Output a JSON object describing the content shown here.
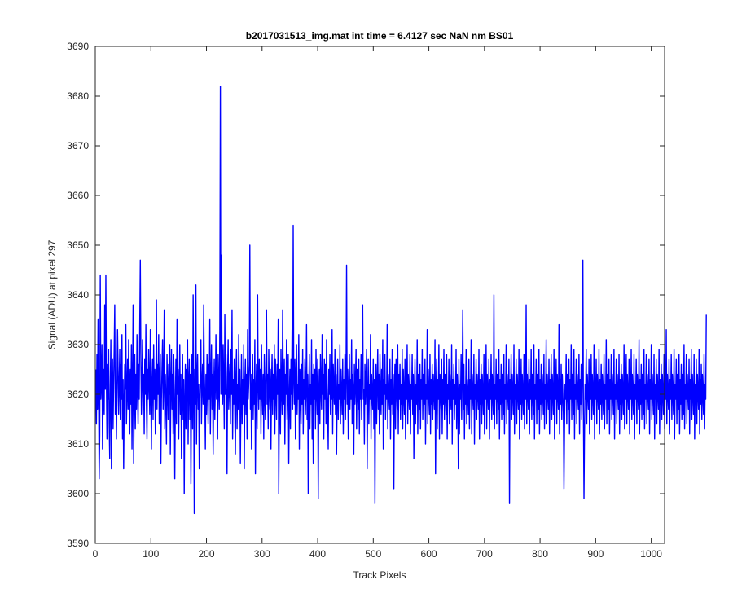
{
  "chart_data": {
    "type": "line",
    "title": "b2017031513_img.mat int time = 6.4127 sec  NaN nm BS01",
    "xlabel": "Track Pixels",
    "ylabel": "Signal (ADU) at pixel 297",
    "xlim": [
      0,
      1024
    ],
    "ylim": [
      3590,
      3690
    ],
    "xticks": [
      0,
      100,
      200,
      300,
      400,
      500,
      600,
      700,
      800,
      900,
      1000
    ],
    "yticks": [
      3590,
      3600,
      3610,
      3620,
      3630,
      3640,
      3650,
      3660,
      3670,
      3680,
      3690
    ],
    "grid": false,
    "series": [
      {
        "color": "#0000ff",
        "x_start": 1,
        "x_step": 1,
        "approx_mean": 3622,
        "approx_std": 7.5,
        "values": [
          3625,
          3614,
          3628,
          3617,
          3635,
          3620,
          3603,
          3612,
          3644,
          3619,
          3622,
          3630,
          3609,
          3618,
          3625,
          3616,
          3638,
          3621,
          3644,
          3623,
          3611,
          3626,
          3619,
          3629,
          3614,
          3607,
          3622,
          3631,
          3605,
          3618,
          3627,
          3613,
          3622,
          3629,
          3638,
          3616,
          3624,
          3611,
          3620,
          3633,
          3625,
          3616,
          3622,
          3629,
          3615,
          3626,
          3619,
          3632,
          3611,
          3623,
          3605,
          3618,
          3626,
          3621,
          3634,
          3614,
          3620,
          3627,
          3617,
          3631,
          3623,
          3612,
          3625,
          3618,
          3630,
          3609,
          3622,
          3638,
          3606,
          3619,
          3628,
          3613,
          3624,
          3617,
          3632,
          3621,
          3614,
          3626,
          3619,
          3634,
          3647,
          3628,
          3616,
          3623,
          3631,
          3617,
          3624,
          3612,
          3627,
          3620,
          3634,
          3618,
          3611,
          3625,
          3619,
          3629,
          3622,
          3616,
          3633,
          3620,
          3609,
          3623,
          3627,
          3615,
          3630,
          3619,
          3625,
          3612,
          3622,
          3639,
          3617,
          3626,
          3620,
          3632,
          3614,
          3623,
          3628,
          3606,
          3619,
          3625,
          3631,
          3617,
          3622,
          3637,
          3613,
          3624,
          3619,
          3610,
          3628,
          3621,
          3615,
          3626,
          3620,
          3630,
          3608,
          3622,
          3629,
          3617,
          3624,
          3612,
          3628,
          3621,
          3603,
          3618,
          3627,
          3614,
          3635,
          3620,
          3625,
          3611,
          3622,
          3630,
          3616,
          3624,
          3607,
          3619,
          3628,
          3615,
          3623,
          3600,
          3618,
          3626,
          3613,
          3625,
          3619,
          3631,
          3610,
          3622,
          3627,
          3615,
          3624,
          3602,
          3619,
          3628,
          3613,
          3640,
          3621,
          3596,
          3625,
          3618,
          3642,
          3610,
          3623,
          3628,
          3617,
          3622,
          3605,
          3619,
          3624,
          3631,
          3614,
          3622,
          3626,
          3618,
          3638,
          3625,
          3620,
          3609,
          3624,
          3616,
          3628,
          3621,
          3614,
          3626,
          3619,
          3635,
          3612,
          3623,
          3630,
          3617,
          3624,
          3608,
          3621,
          3627,
          3615,
          3622,
          3632,
          3619,
          3625,
          3611,
          3628,
          3622,
          3617,
          3634,
          3682,
          3620,
          3648,
          3625,
          3618,
          3630,
          3622,
          3613,
          3636,
          3620,
          3628,
          3619,
          3604,
          3624,
          3631,
          3617,
          3622,
          3626,
          3614,
          3629,
          3620,
          3637,
          3611,
          3623,
          3618,
          3627,
          3616,
          3608,
          3624,
          3629,
          3613,
          3622,
          3617,
          3632,
          3620,
          3625,
          3606,
          3619,
          3628,
          3614,
          3623,
          3618,
          3630,
          3605,
          3621,
          3627,
          3616,
          3624,
          3611,
          3633,
          3619,
          3622,
          3626,
          3650,
          3617,
          3624,
          3609,
          3621,
          3628,
          3615,
          3623,
          3618,
          3631,
          3604,
          3620,
          3626,
          3613,
          3640,
          3622,
          3617,
          3627,
          3619,
          3625,
          3612,
          3630,
          3621,
          3616,
          3624,
          3611,
          3628,
          3620,
          3615,
          3626,
          3637,
          3618,
          3624,
          3613,
          3629,
          3621,
          3617,
          3625,
          3609,
          3622,
          3628,
          3616,
          3624,
          3619,
          3630,
          3612,
          3627,
          3621,
          3615,
          3626,
          3620,
          3635,
          3600,
          3618,
          3625,
          3612,
          3629,
          3621,
          3616,
          3637,
          3623,
          3618,
          3627,
          3610,
          3624,
          3620,
          3631,
          3615,
          3622,
          3628,
          3606,
          3619,
          3625,
          3613,
          3627,
          3620,
          3633,
          3617,
          3654,
          3623,
          3618,
          3627,
          3611,
          3624,
          3630,
          3616,
          3622,
          3619,
          3632,
          3609,
          3625,
          3620,
          3614,
          3626,
          3618,
          3629,
          3612,
          3623,
          3619,
          3627,
          3616,
          3621,
          3634,
          3615,
          3624,
          3600,
          3620,
          3628,
          3613,
          3622,
          3618,
          3631,
          3611,
          3624,
          3606,
          3626,
          3619,
          3625,
          3613,
          3629,
          3621,
          3616,
          3627,
          3599,
          3620,
          3625,
          3614,
          3628,
          3621,
          3617,
          3632,
          3620,
          3624,
          3611,
          3627,
          3619,
          3626,
          3614,
          3631,
          3622,
          3617,
          3609,
          3625,
          3620,
          3628,
          3616,
          3623,
          3619,
          3633,
          3612,
          3626,
          3621,
          3618,
          3629,
          3616,
          3624,
          3608,
          3620,
          3627,
          3615,
          3622,
          3619,
          3630,
          3614,
          3625,
          3620,
          3616,
          3627,
          3612,
          3623,
          3619,
          3628,
          3615,
          3624,
          3646,
          3618,
          3625,
          3611,
          3621,
          3628,
          3617,
          3623,
          3619,
          3631,
          3614,
          3624,
          3621,
          3608,
          3626,
          3618,
          3622,
          3629,
          3613,
          3625,
          3620,
          3617,
          3627,
          3612,
          3623,
          3619,
          3628,
          3615,
          3624,
          3638,
          3619,
          3621,
          3610,
          3626,
          3618,
          3623,
          3629,
          3605,
          3620,
          3627,
          3614,
          3622,
          3619,
          3632,
          3611,
          3624,
          3620,
          3617,
          3627,
          3613,
          3623,
          3598,
          3619,
          3626,
          3614,
          3622,
          3629,
          3617,
          3624,
          3612,
          3628,
          3620,
          3616,
          3625,
          3618,
          3631,
          3609,
          3623,
          3620,
          3628,
          3615,
          3622,
          3619,
          3634,
          3613,
          3624,
          3620,
          3617,
          3627,
          3611,
          3623,
          3618,
          3629,
          3616,
          3624,
          3601,
          3620,
          3626,
          3613,
          3627,
          3621,
          3617,
          3630,
          3612,
          3624,
          3619,
          3626,
          3615,
          3622,
          3618,
          3629,
          3613,
          3625,
          3620,
          3616,
          3627,
          3611,
          3623,
          3619,
          3630,
          3614,
          3624,
          3620,
          3617,
          3628,
          3612,
          3622,
          3619,
          3628,
          3616,
          3624,
          3607,
          3620,
          3627,
          3614,
          3622,
          3618,
          3631,
          3612,
          3624,
          3621,
          3617,
          3626,
          3613,
          3623,
          3619,
          3629,
          3615,
          3624,
          3620,
          3618,
          3627,
          3610,
          3622,
          3619,
          3633,
          3614,
          3625,
          3620,
          3616,
          3628,
          3612,
          3623,
          3618,
          3626,
          3615,
          3624,
          3620,
          3617,
          3631,
          3604,
          3621,
          3627,
          3613,
          3623,
          3619,
          3630,
          3611,
          3624,
          3620,
          3617,
          3627,
          3612,
          3623,
          3618,
          3629,
          3615,
          3624,
          3620,
          3616,
          3628,
          3611,
          3622,
          3619,
          3627,
          3614,
          3624,
          3620,
          3617,
          3630,
          3610,
          3623,
          3619,
          3626,
          3615,
          3622,
          3618,
          3629,
          3613,
          3624,
          3620,
          3605,
          3627,
          3612,
          3622,
          3619,
          3628,
          3615,
          3624,
          3637,
          3617,
          3626,
          3611,
          3622,
          3618,
          3629,
          3614,
          3623,
          3620,
          3616,
          3627,
          3613,
          3623,
          3619,
          3631,
          3612,
          3624,
          3620,
          3617,
          3628,
          3610,
          3622,
          3619,
          3627,
          3615,
          3624,
          3620,
          3617,
          3629,
          3611,
          3623,
          3618,
          3626,
          3614,
          3624,
          3620,
          3616,
          3628,
          3612,
          3622,
          3619,
          3630,
          3613,
          3624,
          3620,
          3617,
          3627,
          3611,
          3623,
          3619,
          3628,
          3615,
          3624,
          3620,
          3616,
          3640,
          3613,
          3622,
          3619,
          3627,
          3614,
          3624,
          3620,
          3617,
          3629,
          3611,
          3623,
          3618,
          3626,
          3615,
          3624,
          3620,
          3616,
          3628,
          3612,
          3622,
          3619,
          3630,
          3614,
          3624,
          3620,
          3617,
          3627,
          3598,
          3623,
          3619,
          3628,
          3615,
          3624,
          3620,
          3616,
          3630,
          3612,
          3622,
          3619,
          3627,
          3614,
          3624,
          3620,
          3617,
          3629,
          3611,
          3623,
          3618,
          3627,
          3615,
          3624,
          3620,
          3616,
          3628,
          3613,
          3622,
          3619,
          3638,
          3614,
          3624,
          3620,
          3617,
          3627,
          3612,
          3623,
          3619,
          3629,
          3615,
          3624,
          3620,
          3616,
          3630,
          3611,
          3622,
          3619,
          3627,
          3614,
          3624,
          3620,
          3617,
          3629,
          3612,
          3623,
          3618,
          3626,
          3615,
          3624,
          3620,
          3616,
          3628,
          3613,
          3622,
          3619,
          3631,
          3614,
          3624,
          3620,
          3617,
          3627,
          3612,
          3623,
          3619,
          3628,
          3615,
          3624,
          3620,
          3616,
          3629,
          3611,
          3622,
          3619,
          3627,
          3614,
          3624,
          3620,
          3617,
          3634,
          3612,
          3623,
          3618,
          3626,
          3615,
          3624,
          3620,
          3616,
          3601,
          3613,
          3622,
          3619,
          3628,
          3614,
          3624,
          3620,
          3617,
          3627,
          3612,
          3623,
          3619,
          3630,
          3615,
          3624,
          3620,
          3616,
          3629,
          3611,
          3622,
          3619,
          3627,
          3614,
          3624,
          3620,
          3617,
          3628,
          3612,
          3623,
          3618,
          3626,
          3615,
          3624,
          3647,
          3616,
          3599,
          3613,
          3622,
          3619,
          3629,
          3614,
          3624,
          3620,
          3617,
          3627,
          3612,
          3623,
          3619,
          3628,
          3615,
          3624,
          3620,
          3616,
          3630,
          3611,
          3622,
          3619,
          3627,
          3614,
          3624,
          3620,
          3617,
          3629,
          3612,
          3623,
          3618,
          3626,
          3615,
          3624,
          3620,
          3616,
          3628,
          3613,
          3622,
          3619,
          3631,
          3614,
          3624,
          3620,
          3617,
          3627,
          3612,
          3623,
          3619,
          3628,
          3615,
          3624,
          3620,
          3616,
          3629,
          3611,
          3622,
          3619,
          3627,
          3614,
          3624,
          3620,
          3617,
          3628,
          3612,
          3623,
          3618,
          3626,
          3615,
          3624,
          3620,
          3616,
          3630,
          3613,
          3622,
          3619,
          3628,
          3614,
          3624,
          3620,
          3617,
          3627,
          3612,
          3623,
          3619,
          3629,
          3615,
          3624,
          3620,
          3616,
          3628,
          3611,
          3622,
          3619,
          3627,
          3614,
          3624,
          3620,
          3617,
          3631,
          3612,
          3623,
          3618,
          3626,
          3615,
          3624,
          3620,
          3616,
          3629,
          3613,
          3622,
          3619,
          3628,
          3614,
          3624,
          3620,
          3617,
          3627,
          3612,
          3623,
          3619,
          3630,
          3615,
          3624,
          3620,
          3616,
          3628,
          3611,
          3622,
          3619,
          3627,
          3614,
          3624,
          3620,
          3617,
          3629,
          3612,
          3623,
          3618,
          3626,
          3615,
          3624,
          3620,
          3616,
          3628,
          3613,
          3622,
          3619,
          3633,
          3614,
          3624,
          3620,
          3617,
          3627,
          3612,
          3623,
          3619,
          3628,
          3615,
          3624,
          3620,
          3616,
          3629,
          3611,
          3622,
          3619,
          3627,
          3614,
          3624,
          3620,
          3617,
          3628,
          3612,
          3623,
          3618,
          3626,
          3615,
          3624,
          3620,
          3616,
          3630,
          3613,
          3622,
          3619,
          3628,
          3614,
          3624,
          3620,
          3617,
          3627,
          3612,
          3623,
          3619,
          3629,
          3615,
          3624,
          3620,
          3616,
          3628,
          3611,
          3622,
          3619,
          3627,
          3614,
          3624,
          3620,
          3617,
          3629,
          3612,
          3623,
          3618,
          3626,
          3615,
          3624,
          3620,
          3616,
          3628,
          3613,
          3622,
          3619,
          3636
        ]
      }
    ]
  }
}
